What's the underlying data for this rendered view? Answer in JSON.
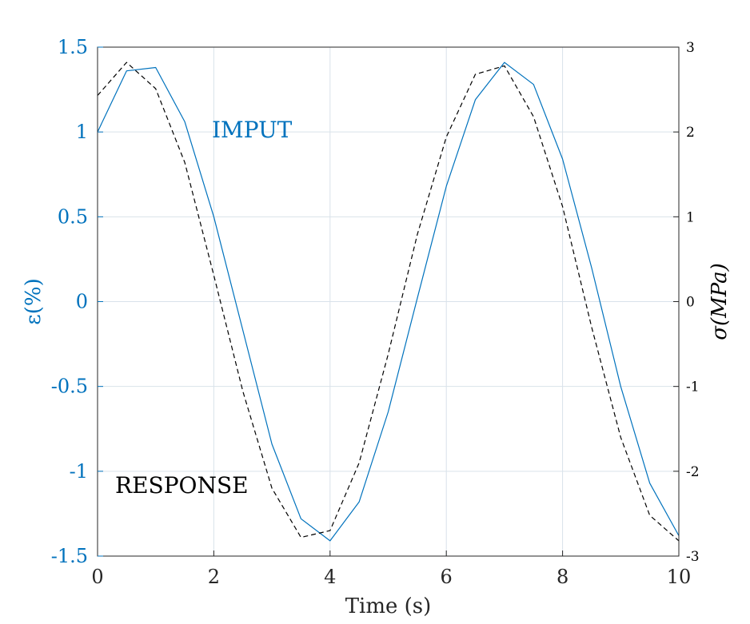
{
  "chart_data": {
    "type": "line",
    "title": "",
    "xlabel": "Time (s)",
    "ylabel_left": "ε(%)",
    "ylabel_right": "σ(MPa)",
    "xlim": [
      0,
      10
    ],
    "ylim_left": [
      -1.5,
      1.5
    ],
    "ylim_right": [
      -3,
      3
    ],
    "xticks": [
      "0",
      "2",
      "4",
      "6",
      "8",
      "10"
    ],
    "yticks_left": [
      "1.5",
      "1",
      "0.5",
      "0",
      "-0.5",
      "-1",
      "-1.5"
    ],
    "yticks_right": [
      "3",
      "2",
      "1",
      "0",
      "-1",
      "-2",
      "-3"
    ],
    "grid": true,
    "colors": {
      "input": "#0072BD",
      "response": "#000000",
      "grid": "#d9e2ea"
    },
    "annotations": {
      "input": "IMPUT",
      "response": "RESPONSE"
    },
    "series": [
      {
        "axis": "left",
        "style": "solid",
        "x": [
          0,
          0.5,
          1,
          1.5,
          2,
          2.5,
          3,
          3.5,
          4,
          4.5,
          5,
          5.5,
          6,
          6.5,
          7,
          7.5,
          8,
          8.5,
          9,
          9.5,
          10
        ],
        "values": [
          1.0,
          1.36,
          1.38,
          1.06,
          0.5,
          -0.17,
          -0.84,
          -1.28,
          -1.41,
          -1.18,
          -0.65,
          0.02,
          0.68,
          1.19,
          1.41,
          1.28,
          0.84,
          0.2,
          -0.5,
          -1.07,
          -1.38
        ]
      },
      {
        "axis": "right",
        "style": "dashed",
        "x": [
          0,
          0.5,
          1,
          1.5,
          2,
          2.5,
          3,
          3.5,
          4,
          4.5,
          5,
          5.5,
          6,
          6.5,
          7,
          7.5,
          8,
          8.5,
          9,
          9.5,
          10
        ],
        "values": [
          2.43,
          2.82,
          2.51,
          1.64,
          0.31,
          -1.06,
          -2.2,
          -2.78,
          -2.7,
          -1.9,
          -0.62,
          0.79,
          1.94,
          2.68,
          2.78,
          2.18,
          1.12,
          -0.3,
          -1.6,
          -2.52,
          -2.82
        ]
      }
    ]
  }
}
